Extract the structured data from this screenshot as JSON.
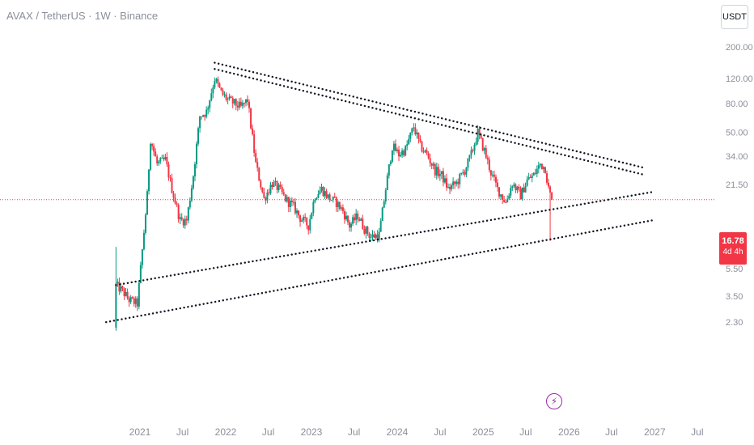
{
  "header": {
    "title": "AVAX / TetherUS · 1W · Binance"
  },
  "currency_button": "USDT",
  "last_price": {
    "price": "16.78",
    "countdown": "4d 4h"
  },
  "event_icon": "flash-icon",
  "colors": {
    "up": "#089981",
    "down": "#f23645",
    "line": "#131722",
    "last_price_line": "#f23645",
    "event": "#9c27b0"
  },
  "chart_data": {
    "type": "candlestick",
    "title": "AVAX / TetherUS · 1W · Binance",
    "y_scale": "log",
    "y_axis_side": "right",
    "y_ticks": [
      "200.00",
      "120.00",
      "80.00",
      "50.00",
      "34.00",
      "21.50",
      "16.78",
      "8.50",
      "5.50",
      "3.50",
      "2.30"
    ],
    "x_ticks": [
      "2021",
      "Jul",
      "2022",
      "Jul",
      "2023",
      "Jul",
      "2024",
      "Jul",
      "2025",
      "Jul",
      "2026",
      "Jul",
      "2027",
      "Jul"
    ],
    "last_price": 16.78,
    "weekly_closes_approx": [
      {
        "date": "2020-09-21",
        "close": 4.2
      },
      {
        "date": "2020-10-19",
        "close": 3.8
      },
      {
        "date": "2020-11-16",
        "close": 3.3
      },
      {
        "date": "2020-12-21",
        "close": 3.1
      },
      {
        "date": "2021-01-04",
        "close": 5.5
      },
      {
        "date": "2021-02-01",
        "close": 18
      },
      {
        "date": "2021-02-15",
        "close": 45
      },
      {
        "date": "2021-03-15",
        "close": 30
      },
      {
        "date": "2021-04-19",
        "close": 32
      },
      {
        "date": "2021-05-17",
        "close": 20
      },
      {
        "date": "2021-06-21",
        "close": 12
      },
      {
        "date": "2021-07-19",
        "close": 12
      },
      {
        "date": "2021-08-16",
        "close": 25
      },
      {
        "date": "2021-09-13",
        "close": 65
      },
      {
        "date": "2021-10-11",
        "close": 70
      },
      {
        "date": "2021-11-15",
        "close": 120
      },
      {
        "date": "2021-12-13",
        "close": 95
      },
      {
        "date": "2022-01-10",
        "close": 85
      },
      {
        "date": "2022-02-07",
        "close": 80
      },
      {
        "date": "2022-03-07",
        "close": 75
      },
      {
        "date": "2022-04-04",
        "close": 85
      },
      {
        "date": "2022-05-09",
        "close": 30
      },
      {
        "date": "2022-06-13",
        "close": 17
      },
      {
        "date": "2022-07-18",
        "close": 22
      },
      {
        "date": "2022-08-15",
        "close": 20
      },
      {
        "date": "2022-09-12",
        "close": 17
      },
      {
        "date": "2022-10-17",
        "close": 15
      },
      {
        "date": "2022-11-14",
        "close": 12.5
      },
      {
        "date": "2022-12-19",
        "close": 11
      },
      {
        "date": "2023-01-16",
        "close": 18
      },
      {
        "date": "2023-02-13",
        "close": 20
      },
      {
        "date": "2023-03-13",
        "close": 17.5
      },
      {
        "date": "2023-04-17",
        "close": 16
      },
      {
        "date": "2023-05-15",
        "close": 14
      },
      {
        "date": "2023-06-12",
        "close": 11
      },
      {
        "date": "2023-07-17",
        "close": 13
      },
      {
        "date": "2023-08-14",
        "close": 10.5
      },
      {
        "date": "2023-09-11",
        "close": 9.2
      },
      {
        "date": "2023-10-16",
        "close": 9.5
      },
      {
        "date": "2023-11-13",
        "close": 20
      },
      {
        "date": "2023-12-11",
        "close": 40
      },
      {
        "date": "2024-01-08",
        "close": 35
      },
      {
        "date": "2024-02-05",
        "close": 38
      },
      {
        "date": "2024-03-11",
        "close": 55
      },
      {
        "date": "2024-04-08",
        "close": 40
      },
      {
        "date": "2024-05-06",
        "close": 35
      },
      {
        "date": "2024-06-10",
        "close": 27
      },
      {
        "date": "2024-07-08",
        "close": 25
      },
      {
        "date": "2024-08-05",
        "close": 20
      },
      {
        "date": "2024-09-09",
        "close": 22
      },
      {
        "date": "2024-10-14",
        "close": 27
      },
      {
        "date": "2024-11-11",
        "close": 35
      },
      {
        "date": "2024-12-09",
        "close": 50
      },
      {
        "date": "2025-01-06",
        "close": 37
      },
      {
        "date": "2025-02-03",
        "close": 26
      },
      {
        "date": "2025-03-03",
        "close": 20
      },
      {
        "date": "2025-04-07",
        "close": 16
      },
      {
        "date": "2025-05-05",
        "close": 22
      },
      {
        "date": "2025-06-09",
        "close": 18
      },
      {
        "date": "2025-07-07",
        "close": 23
      },
      {
        "date": "2025-08-04",
        "close": 25
      },
      {
        "date": "2025-09-01",
        "close": 30
      },
      {
        "date": "2025-09-22",
        "close": 28
      },
      {
        "date": "2025-10-06",
        "close": 20
      },
      {
        "date": "2025-10-20",
        "close": 16.78
      }
    ],
    "trendlines": [
      {
        "style": "dotted",
        "from": {
          "date": "2021-11-15",
          "price": 155
        },
        "to": {
          "date": "2026-11-23",
          "price": 28
        }
      },
      {
        "style": "dotted",
        "from": {
          "date": "2021-11-15",
          "price": 140
        },
        "to": {
          "date": "2026-11-23",
          "price": 25
        }
      },
      {
        "style": "dotted",
        "from": {
          "date": "2020-09-21",
          "price": 4.2
        },
        "to": {
          "date": "2026-12-21",
          "price": 19
        }
      },
      {
        "style": "dotted",
        "from": {
          "date": "2020-08-10",
          "price": 2.3
        },
        "to": {
          "date": "2026-12-21",
          "price": 12
        }
      }
    ]
  }
}
